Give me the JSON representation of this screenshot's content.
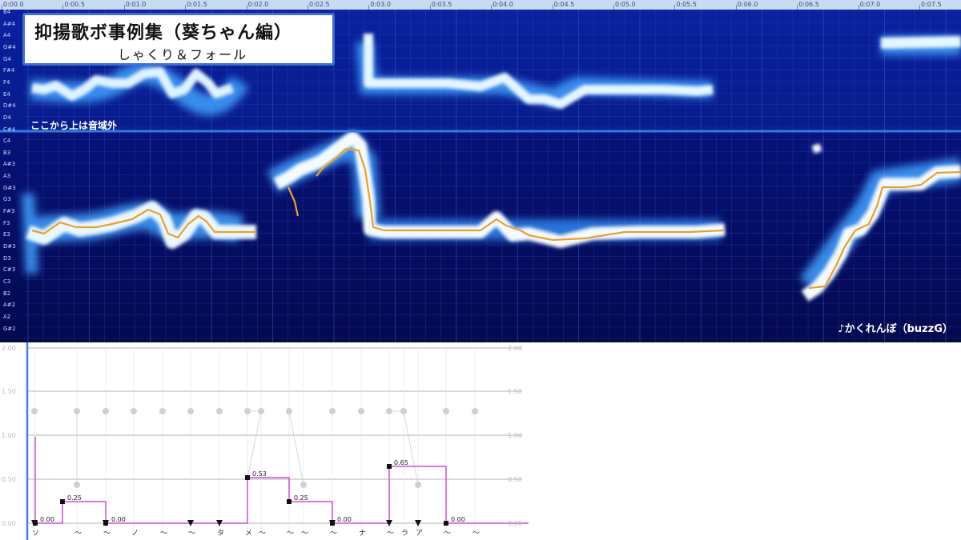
{
  "ruler": {
    "ticks": [
      "0:00.0",
      "0:00.5",
      "0:01.0",
      "0:01.5",
      "0:02.0",
      "0:02.5",
      "0:03.0",
      "0:03.5",
      "0:04.0",
      "0:04.5",
      "0:05.0",
      "0:05.5",
      "0:06.0",
      "0:06.5",
      "0:07.0",
      "0:07.5"
    ]
  },
  "pitch_labels": [
    "B4",
    "A#4",
    "A4",
    "G#4",
    "G4",
    "F#4",
    "F4",
    "E4",
    "D#4",
    "D4",
    "C#4",
    "C4",
    "B3",
    "A#3",
    "A3",
    "G#3",
    "G3",
    "F#3",
    "F3",
    "E3",
    "D#3",
    "D3",
    "C#3",
    "C3",
    "B2",
    "A#2",
    "A2",
    "G#2"
  ],
  "title": {
    "main": "抑揚歌ボ事例集（葵ちゃん編）",
    "sub": "しゃくり＆フォール"
  },
  "range_note": "ここから上は音域外",
  "song_credit": "♪かくれんぼ（buzzG）",
  "editor": {
    "y_labels": [
      "2.00",
      "1.50",
      "1.00",
      "0.50",
      "0.00"
    ],
    "lyrics": [
      "ソ",
      "～",
      "～",
      "ノ",
      "～",
      "～",
      "タ",
      "メ",
      "～",
      "～",
      "～",
      "～",
      "ナ",
      "～",
      "ラ",
      "ア",
      "～",
      "～"
    ],
    "values": [
      "0.00",
      "0.25",
      "0.00",
      "0.53",
      "0.25",
      "0.00",
      "0.65",
      "0.00"
    ]
  },
  "colors": {
    "accent": "#3d6fd8",
    "pitch_curve": "#f0a020",
    "editor_line": "#d24fd6"
  }
}
